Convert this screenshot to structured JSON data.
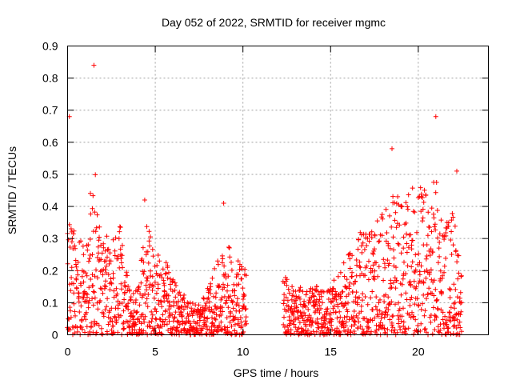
{
  "chart_data": {
    "type": "scatter",
    "title": "Day 052 of 2022, SRMTID for receiver mgmc",
    "xlabel": "GPS time / hours",
    "ylabel": "SRMTID / TECUs",
    "xlim": [
      0,
      24
    ],
    "ylim": [
      0,
      0.9
    ],
    "xticks": [
      0,
      5,
      10,
      15,
      20
    ],
    "yticks": [
      0,
      0.1,
      0.2,
      0.3,
      0.4,
      0.5,
      0.6,
      0.7,
      0.8,
      0.9
    ],
    "xtick_labels": [
      "0",
      "5",
      "10",
      "15",
      "20"
    ],
    "ytick_labels": [
      "0",
      "0.1",
      "0.2",
      "0.3",
      "0.4",
      "0.5",
      "0.6",
      "0.7",
      "0.8",
      "0.9"
    ],
    "grid": true,
    "marker": "+",
    "marker_color": "#ff0000",
    "data_gap": [
      10.2,
      12.3
    ],
    "notable_points": [
      {
        "x": 1.5,
        "y": 0.84
      },
      {
        "x": 0.1,
        "y": 0.68
      },
      {
        "x": 21.0,
        "y": 0.68
      },
      {
        "x": 18.5,
        "y": 0.58
      },
      {
        "x": 4.4,
        "y": 0.42
      },
      {
        "x": 8.9,
        "y": 0.41
      },
      {
        "x": 22.2,
        "y": 0.51
      }
    ],
    "envelope": [
      {
        "x": 0.0,
        "y": 0.35
      },
      {
        "x": 0.5,
        "y": 0.32
      },
      {
        "x": 1.0,
        "y": 0.28
      },
      {
        "x": 1.5,
        "y": 0.55
      },
      {
        "x": 2.0,
        "y": 0.3
      },
      {
        "x": 2.5,
        "y": 0.32
      },
      {
        "x": 3.0,
        "y": 0.35
      },
      {
        "x": 3.5,
        "y": 0.15
      },
      {
        "x": 4.0,
        "y": 0.15
      },
      {
        "x": 4.5,
        "y": 0.35
      },
      {
        "x": 5.0,
        "y": 0.25
      },
      {
        "x": 5.5,
        "y": 0.25
      },
      {
        "x": 6.0,
        "y": 0.18
      },
      {
        "x": 6.5,
        "y": 0.15
      },
      {
        "x": 7.0,
        "y": 0.1
      },
      {
        "x": 7.5,
        "y": 0.1
      },
      {
        "x": 8.0,
        "y": 0.15
      },
      {
        "x": 8.5,
        "y": 0.22
      },
      {
        "x": 9.0,
        "y": 0.3
      },
      {
        "x": 9.5,
        "y": 0.25
      },
      {
        "x": 10.0,
        "y": 0.25
      },
      {
        "x": 12.5,
        "y": 0.18
      },
      {
        "x": 13.0,
        "y": 0.15
      },
      {
        "x": 13.5,
        "y": 0.15
      },
      {
        "x": 14.0,
        "y": 0.16
      },
      {
        "x": 14.5,
        "y": 0.14
      },
      {
        "x": 15.0,
        "y": 0.15
      },
      {
        "x": 15.5,
        "y": 0.2
      },
      {
        "x": 16.0,
        "y": 0.25
      },
      {
        "x": 16.5,
        "y": 0.3
      },
      {
        "x": 17.0,
        "y": 0.35
      },
      {
        "x": 17.5,
        "y": 0.35
      },
      {
        "x": 18.0,
        "y": 0.38
      },
      {
        "x": 18.5,
        "y": 0.45
      },
      {
        "x": 19.0,
        "y": 0.42
      },
      {
        "x": 19.5,
        "y": 0.45
      },
      {
        "x": 20.0,
        "y": 0.48
      },
      {
        "x": 20.5,
        "y": 0.45
      },
      {
        "x": 21.0,
        "y": 0.5
      },
      {
        "x": 21.5,
        "y": 0.35
      },
      {
        "x": 22.0,
        "y": 0.4
      },
      {
        "x": 22.5,
        "y": 0.2
      }
    ]
  }
}
